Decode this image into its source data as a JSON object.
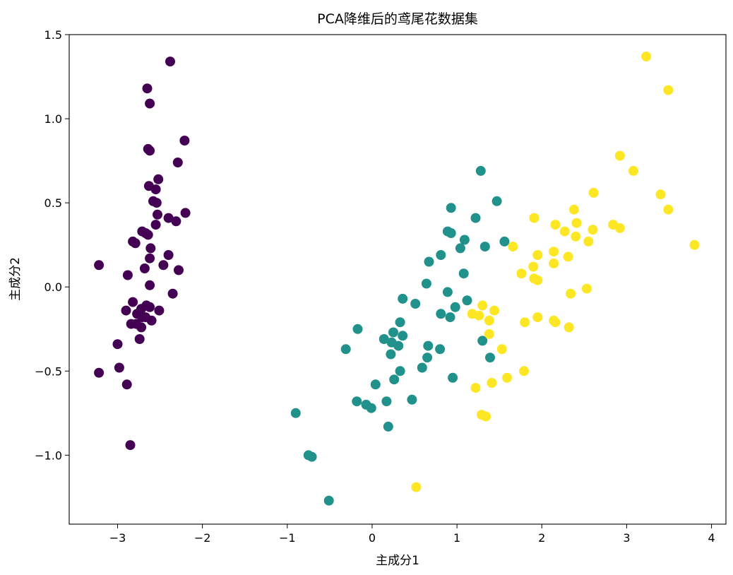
{
  "chart_data": {
    "type": "scatter",
    "title": "PCA降维后的鸢尾花数据集",
    "xlabel": "主成分1",
    "ylabel": "主成分2",
    "xlim": [
      -3.57,
      4.17
    ],
    "ylim": [
      -1.41,
      1.5
    ],
    "xticks": [
      -3,
      -2,
      -1,
      0,
      1,
      2,
      3,
      4
    ],
    "yticks": [
      -1.0,
      -0.5,
      0.0,
      0.5,
      1.0,
      1.5
    ],
    "xtick_labels": [
      "−3",
      "−2",
      "−1",
      "0",
      "1",
      "2",
      "3",
      "4"
    ],
    "ytick_labels": [
      "−1.0",
      "−0.5",
      "0.0",
      "0.5",
      "1.0",
      "1.5"
    ],
    "grid": false,
    "series": [
      {
        "color": "#440154",
        "points": [
          [
            -2.38,
            1.34
          ],
          [
            -2.65,
            1.18
          ],
          [
            -2.62,
            1.09
          ],
          [
            -2.21,
            0.87
          ],
          [
            -2.64,
            0.82
          ],
          [
            -2.62,
            0.81
          ],
          [
            -2.29,
            0.74
          ],
          [
            -2.52,
            0.64
          ],
          [
            -2.63,
            0.6
          ],
          [
            -2.55,
            0.58
          ],
          [
            -2.58,
            0.51
          ],
          [
            -2.54,
            0.5
          ],
          [
            -2.53,
            0.43
          ],
          [
            -2.2,
            0.44
          ],
          [
            -2.4,
            0.41
          ],
          [
            -2.31,
            0.39
          ],
          [
            -2.55,
            0.37
          ],
          [
            -2.67,
            0.32
          ],
          [
            -2.71,
            0.33
          ],
          [
            -2.64,
            0.31
          ],
          [
            -2.82,
            0.27
          ],
          [
            -2.79,
            0.26
          ],
          [
            -2.61,
            0.23
          ],
          [
            -2.4,
            0.19
          ],
          [
            -2.62,
            0.17
          ],
          [
            -2.46,
            0.13
          ],
          [
            -3.22,
            0.13
          ],
          [
            -2.68,
            0.11
          ],
          [
            -2.28,
            0.1
          ],
          [
            -2.88,
            0.07
          ],
          [
            -2.62,
            0.01
          ],
          [
            -2.35,
            -0.04
          ],
          [
            -2.82,
            -0.09
          ],
          [
            -2.66,
            -0.11
          ],
          [
            -2.62,
            -0.12
          ],
          [
            -2.72,
            -0.13
          ],
          [
            -2.9,
            -0.14
          ],
          [
            -2.51,
            -0.14
          ],
          [
            -2.77,
            -0.16
          ],
          [
            -2.67,
            -0.18
          ],
          [
            -2.71,
            -0.18
          ],
          [
            -2.6,
            -0.2
          ],
          [
            -2.84,
            -0.22
          ],
          [
            -2.78,
            -0.22
          ],
          [
            -2.72,
            -0.24
          ],
          [
            -2.74,
            -0.31
          ],
          [
            -3.0,
            -0.34
          ],
          [
            -2.98,
            -0.48
          ],
          [
            -3.22,
            -0.51
          ],
          [
            -2.89,
            -0.58
          ],
          [
            -2.85,
            -0.94
          ]
        ]
      },
      {
        "color": "#21918c",
        "points": [
          [
            1.28,
            0.69
          ],
          [
            1.47,
            0.51
          ],
          [
            0.93,
            0.47
          ],
          [
            1.22,
            0.41
          ],
          [
            0.89,
            0.33
          ],
          [
            0.93,
            0.32
          ],
          [
            1.09,
            0.28
          ],
          [
            1.56,
            0.27
          ],
          [
            1.33,
            0.24
          ],
          [
            1.04,
            0.23
          ],
          [
            0.81,
            0.19
          ],
          [
            0.67,
            0.15
          ],
          [
            1.08,
            0.08
          ],
          [
            0.64,
            0.02
          ],
          [
            0.89,
            -0.03
          ],
          [
            0.36,
            -0.07
          ],
          [
            1.12,
            -0.08
          ],
          [
            0.51,
            -0.1
          ],
          [
            0.98,
            -0.12
          ],
          [
            0.81,
            -0.16
          ],
          [
            0.92,
            -0.18
          ],
          [
            0.33,
            -0.21
          ],
          [
            -0.17,
            -0.25
          ],
          [
            0.25,
            -0.27
          ],
          [
            0.36,
            -0.29
          ],
          [
            0.14,
            -0.31
          ],
          [
            1.3,
            -0.32
          ],
          [
            0.23,
            -0.33
          ],
          [
            0.31,
            -0.35
          ],
          [
            0.66,
            -0.35
          ],
          [
            -0.31,
            -0.37
          ],
          [
            0.8,
            -0.37
          ],
          [
            0.22,
            -0.4
          ],
          [
            0.65,
            -0.42
          ],
          [
            1.39,
            -0.42
          ],
          [
            0.59,
            -0.48
          ],
          [
            0.33,
            -0.5
          ],
          [
            0.95,
            -0.54
          ],
          [
            0.26,
            -0.55
          ],
          [
            0.04,
            -0.58
          ],
          [
            0.47,
            -0.67
          ],
          [
            -0.18,
            -0.68
          ],
          [
            0.17,
            -0.68
          ],
          [
            -0.07,
            -0.7
          ],
          [
            -0.01,
            -0.72
          ],
          [
            0.19,
            -0.83
          ],
          [
            -0.9,
            -0.75
          ],
          [
            -0.75,
            -1.0
          ],
          [
            -0.71,
            -1.01
          ],
          [
            -0.51,
            -1.27
          ]
        ]
      },
      {
        "color": "#fde725",
        "points": [
          [
            3.23,
            1.37
          ],
          [
            3.49,
            1.17
          ],
          [
            2.92,
            0.78
          ],
          [
            3.08,
            0.69
          ],
          [
            2.61,
            0.56
          ],
          [
            3.4,
            0.55
          ],
          [
            3.49,
            0.46
          ],
          [
            2.38,
            0.46
          ],
          [
            1.91,
            0.41
          ],
          [
            2.41,
            0.38
          ],
          [
            2.16,
            0.37
          ],
          [
            2.84,
            0.37
          ],
          [
            2.92,
            0.35
          ],
          [
            2.6,
            0.34
          ],
          [
            2.27,
            0.33
          ],
          [
            2.4,
            0.3
          ],
          [
            2.55,
            0.27
          ],
          [
            3.8,
            0.25
          ],
          [
            1.66,
            0.24
          ],
          [
            2.14,
            0.21
          ],
          [
            1.95,
            0.19
          ],
          [
            2.31,
            0.18
          ],
          [
            2.14,
            0.14
          ],
          [
            1.9,
            0.12
          ],
          [
            1.76,
            0.08
          ],
          [
            1.91,
            0.05
          ],
          [
            1.95,
            0.04
          ],
          [
            2.53,
            -0.01
          ],
          [
            2.34,
            -0.04
          ],
          [
            1.3,
            -0.11
          ],
          [
            1.44,
            -0.14
          ],
          [
            1.18,
            -0.16
          ],
          [
            1.26,
            -0.17
          ],
          [
            1.95,
            -0.18
          ],
          [
            1.38,
            -0.2
          ],
          [
            2.14,
            -0.2
          ],
          [
            1.8,
            -0.21
          ],
          [
            2.16,
            -0.21
          ],
          [
            2.32,
            -0.24
          ],
          [
            1.38,
            -0.28
          ],
          [
            1.53,
            -0.37
          ],
          [
            1.79,
            -0.5
          ],
          [
            1.59,
            -0.54
          ],
          [
            1.41,
            -0.57
          ],
          [
            1.22,
            -0.6
          ],
          [
            1.29,
            -0.76
          ],
          [
            1.34,
            -0.77
          ],
          [
            0.52,
            -1.19
          ]
        ]
      }
    ]
  }
}
